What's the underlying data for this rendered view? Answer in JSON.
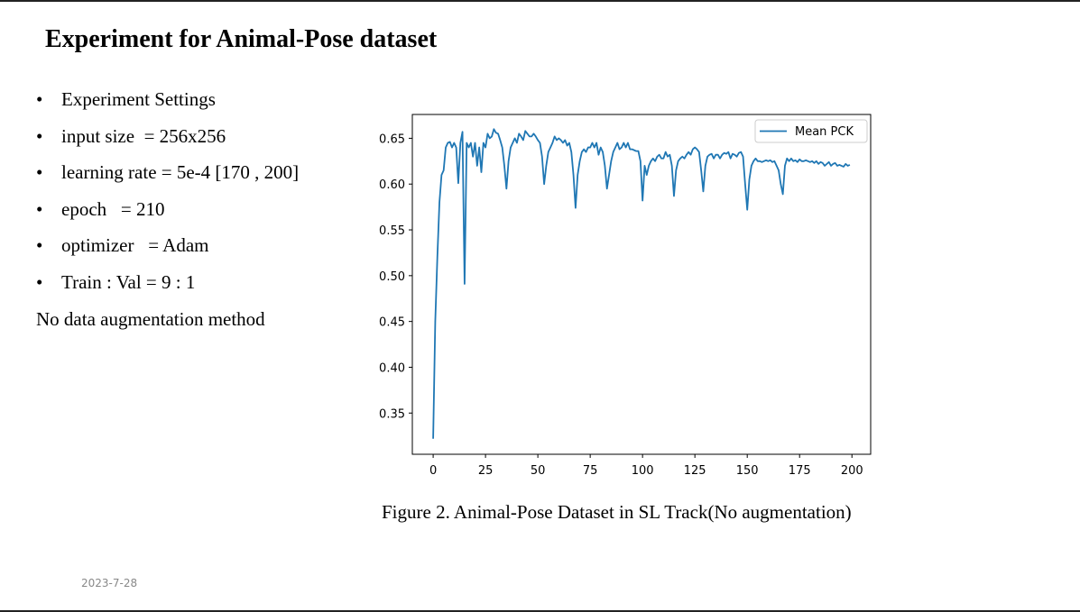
{
  "title": "Experiment for Animal-Pose dataset",
  "bullets": [
    "Experiment Settings",
    "input size  = 256x256",
    "learning rate = 5e-4 [170 , 200]",
    "epoch   = 210",
    "optimizer   = Adam",
    "Train : Val = 9 : 1"
  ],
  "note": "No data augmentation method",
  "caption": "Figure 2. Animal-Pose Dataset in SL Track(No augmentation)",
  "date": "2023-7-28",
  "chart_data": {
    "type": "line",
    "x": [
      0,
      1,
      2,
      3,
      4,
      5,
      6,
      7,
      8,
      9,
      10,
      11,
      12,
      13,
      14,
      15,
      16,
      17,
      18,
      19,
      20,
      21,
      22,
      23,
      24,
      25,
      26,
      27,
      28,
      29,
      30,
      31,
      32,
      33,
      34,
      35,
      36,
      37,
      38,
      39,
      40,
      41,
      42,
      43,
      44,
      45,
      46,
      47,
      48,
      49,
      50,
      51,
      52,
      53,
      54,
      55,
      56,
      57,
      58,
      59,
      60,
      61,
      62,
      63,
      64,
      65,
      66,
      67,
      68,
      69,
      70,
      71,
      72,
      73,
      74,
      75,
      76,
      77,
      78,
      79,
      80,
      81,
      82,
      83,
      84,
      85,
      86,
      87,
      88,
      89,
      90,
      91,
      92,
      93,
      94,
      95,
      96,
      97,
      98,
      99,
      100,
      101,
      102,
      103,
      104,
      105,
      106,
      107,
      108,
      109,
      110,
      111,
      112,
      113,
      114,
      115,
      116,
      117,
      118,
      119,
      120,
      121,
      122,
      123,
      124,
      125,
      126,
      127,
      128,
      129,
      130,
      131,
      132,
      133,
      134,
      135,
      136,
      137,
      138,
      139,
      140,
      141,
      142,
      143,
      144,
      145,
      146,
      147,
      148,
      149,
      150,
      151,
      152,
      153,
      154,
      155,
      156,
      157,
      158,
      159,
      160,
      161,
      162,
      163,
      164,
      165,
      166,
      167,
      168,
      169,
      170,
      171,
      172,
      173,
      174,
      175,
      176,
      177,
      178,
      179,
      180,
      181,
      182,
      183,
      184,
      185,
      186,
      187,
      188,
      189,
      190,
      191,
      192,
      193,
      194,
      195,
      196,
      197,
      198,
      199
    ],
    "series": [
      {
        "name": "Mean PCK",
        "color": "#1f77b4",
        "values": [
          0.322,
          0.45,
          0.52,
          0.58,
          0.61,
          0.615,
          0.64,
          0.645,
          0.646,
          0.64,
          0.645,
          0.64,
          0.601,
          0.645,
          0.657,
          0.491,
          0.645,
          0.64,
          0.645,
          0.63,
          0.645,
          0.62,
          0.64,
          0.613,
          0.645,
          0.64,
          0.655,
          0.65,
          0.652,
          0.66,
          0.656,
          0.655,
          0.648,
          0.64,
          0.62,
          0.595,
          0.625,
          0.64,
          0.645,
          0.65,
          0.645,
          0.655,
          0.652,
          0.648,
          0.658,
          0.655,
          0.652,
          0.652,
          0.655,
          0.652,
          0.648,
          0.645,
          0.63,
          0.6,
          0.62,
          0.635,
          0.64,
          0.645,
          0.652,
          0.648,
          0.65,
          0.648,
          0.645,
          0.648,
          0.642,
          0.645,
          0.635,
          0.61,
          0.574,
          0.61,
          0.625,
          0.635,
          0.638,
          0.635,
          0.64,
          0.64,
          0.645,
          0.64,
          0.645,
          0.632,
          0.64,
          0.635,
          0.62,
          0.595,
          0.61,
          0.625,
          0.635,
          0.64,
          0.645,
          0.638,
          0.64,
          0.645,
          0.64,
          0.645,
          0.638,
          0.638,
          0.637,
          0.636,
          0.636,
          0.625,
          0.582,
          0.62,
          0.61,
          0.62,
          0.625,
          0.628,
          0.625,
          0.63,
          0.632,
          0.628,
          0.628,
          0.635,
          0.63,
          0.632,
          0.62,
          0.587,
          0.615,
          0.625,
          0.628,
          0.63,
          0.628,
          0.632,
          0.635,
          0.632,
          0.638,
          0.64,
          0.638,
          0.635,
          0.615,
          0.592,
          0.62,
          0.63,
          0.632,
          0.633,
          0.628,
          0.632,
          0.632,
          0.628,
          0.632,
          0.634,
          0.633,
          0.635,
          0.628,
          0.633,
          0.632,
          0.63,
          0.634,
          0.635,
          0.63,
          0.6,
          0.572,
          0.605,
          0.62,
          0.625,
          0.628,
          0.625,
          0.625,
          0.624,
          0.625,
          0.626,
          0.625,
          0.626,
          0.624,
          0.625,
          0.62,
          0.615,
          0.6,
          0.589,
          0.62,
          0.628,
          0.625,
          0.628,
          0.625,
          0.626,
          0.624,
          0.627,
          0.625,
          0.625,
          0.626,
          0.625,
          0.624,
          0.625,
          0.623,
          0.625,
          0.622,
          0.624,
          0.623,
          0.62,
          0.622,
          0.624,
          0.62,
          0.622,
          0.623,
          0.62,
          0.621,
          0.62,
          0.619,
          0.622,
          0.62,
          0.621
        ]
      }
    ],
    "xlim": [
      -9.95,
      208.95
    ],
    "xticks": [
      0,
      25,
      50,
      75,
      100,
      125,
      150,
      175,
      200
    ],
    "ylim": [
      0.305,
      0.676
    ],
    "yticks": [
      0.35,
      {
        "value": 0.4,
        "label": "0.40"
      },
      0.45,
      {
        "value": 0.5,
        "label": "0.50"
      },
      0.55,
      {
        "value": 0.6,
        "label": "0.60"
      },
      0.65
    ],
    "legend": "upper right"
  }
}
